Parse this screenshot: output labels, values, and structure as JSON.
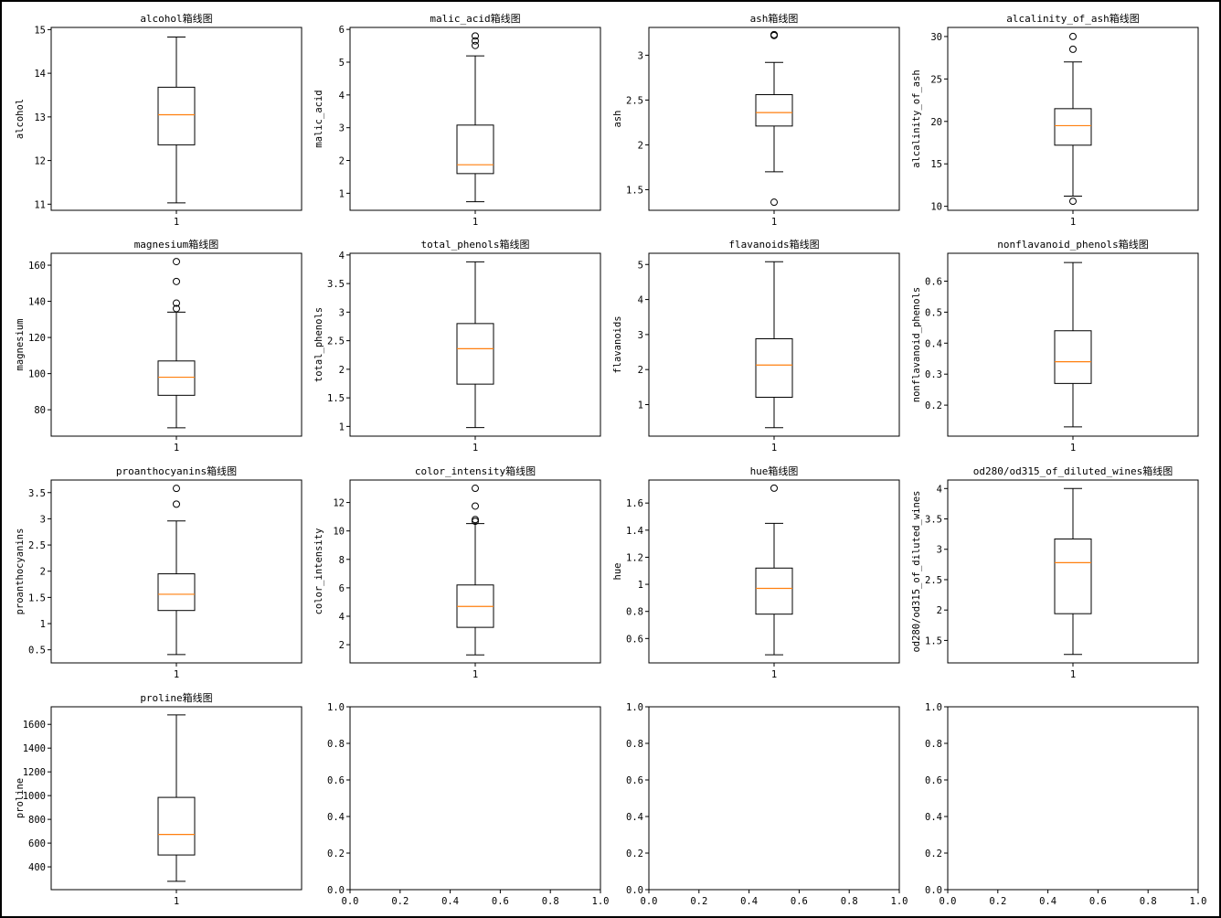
{
  "chart_data": [
    {
      "type": "box",
      "title": "alcohol箱线图",
      "ylabel": "alcohol",
      "xticks": [
        "1"
      ],
      "ylim": [
        10.86,
        15.05
      ],
      "yticks": [
        11,
        12,
        13,
        14,
        15
      ],
      "box": {
        "whisker_low": 11.03,
        "q1": 12.36,
        "median": 13.05,
        "q3": 13.68,
        "whisker_high": 14.83,
        "outliers": []
      }
    },
    {
      "type": "box",
      "title": "malic_acid箱线图",
      "ylabel": "malic_acid",
      "xticks": [
        "1"
      ],
      "ylim": [
        0.48,
        6.06
      ],
      "yticks": [
        1,
        2,
        3,
        4,
        5,
        6
      ],
      "box": {
        "whisker_low": 0.74,
        "q1": 1.6,
        "median": 1.87,
        "q3": 3.08,
        "whisker_high": 5.19,
        "outliers": [
          5.51,
          5.65,
          5.8
        ]
      }
    },
    {
      "type": "box",
      "title": "ash箱线图",
      "ylabel": "ash",
      "xticks": [
        "1"
      ],
      "ylim": [
        1.27,
        3.31
      ],
      "yticks": [
        1.5,
        2.0,
        2.5,
        3.0
      ],
      "box": {
        "whisker_low": 1.7,
        "q1": 2.21,
        "median": 2.36,
        "q3": 2.56,
        "whisker_high": 2.92,
        "outliers": [
          1.36,
          3.22,
          3.23
        ]
      }
    },
    {
      "type": "box",
      "title": "alcalinity_of_ash箱线图",
      "ylabel": "alcalinity_of_ash",
      "xticks": [
        "1"
      ],
      "ylim": [
        9.53,
        31.07
      ],
      "yticks": [
        10,
        15,
        20,
        25,
        30
      ],
      "box": {
        "whisker_low": 11.2,
        "q1": 17.2,
        "median": 19.5,
        "q3": 21.5,
        "whisker_high": 27.0,
        "outliers": [
          10.6,
          28.5,
          30.0
        ]
      }
    },
    {
      "type": "box",
      "title": "magnesium箱线图",
      "ylabel": "magnesium",
      "xticks": [
        "1"
      ],
      "ylim": [
        65.4,
        166.6
      ],
      "yticks": [
        80,
        100,
        120,
        140,
        160
      ],
      "box": {
        "whisker_low": 70,
        "q1": 88,
        "median": 98,
        "q3": 107,
        "whisker_high": 134,
        "outliers": [
          136,
          139,
          151,
          162
        ]
      }
    },
    {
      "type": "box",
      "title": "total_phenols箱线图",
      "ylabel": "total_phenols",
      "xticks": [
        "1"
      ],
      "ylim": [
        0.83,
        4.03
      ],
      "yticks": [
        1.0,
        1.5,
        2.0,
        2.5,
        3.0,
        3.5,
        4.0
      ],
      "box": {
        "whisker_low": 0.98,
        "q1": 1.74,
        "median": 2.36,
        "q3": 2.8,
        "whisker_high": 3.88,
        "outliers": []
      }
    },
    {
      "type": "box",
      "title": "flavanoids箱线图",
      "ylabel": "flavanoids",
      "xticks": [
        "1"
      ],
      "ylim": [
        0.1,
        5.32
      ],
      "yticks": [
        1,
        2,
        3,
        4,
        5
      ],
      "box": {
        "whisker_low": 0.34,
        "q1": 1.21,
        "median": 2.13,
        "q3": 2.88,
        "whisker_high": 5.08,
        "outliers": []
      }
    },
    {
      "type": "box",
      "title": "nonflavanoid_phenols箱线图",
      "ylabel": "nonflavanoid_phenols",
      "xticks": [
        "1"
      ],
      "ylim": [
        0.1,
        0.69
      ],
      "yticks": [
        0.2,
        0.3,
        0.4,
        0.5,
        0.6
      ],
      "box": {
        "whisker_low": 0.13,
        "q1": 0.27,
        "median": 0.34,
        "q3": 0.44,
        "whisker_high": 0.66,
        "outliers": []
      }
    },
    {
      "type": "box",
      "title": "proanthocyanins箱线图",
      "ylabel": "proanthocyanins",
      "xticks": [
        "1"
      ],
      "ylim": [
        0.25,
        3.74
      ],
      "yticks": [
        0.5,
        1.0,
        1.5,
        2.0,
        2.5,
        3.0,
        3.5
      ],
      "box": {
        "whisker_low": 0.41,
        "q1": 1.25,
        "median": 1.56,
        "q3": 1.95,
        "whisker_high": 2.96,
        "outliers": [
          3.28,
          3.58
        ]
      }
    },
    {
      "type": "box",
      "title": "color_intensity箱线图",
      "ylabel": "color_intensity",
      "xticks": [
        "1"
      ],
      "ylim": [
        0.72,
        13.58
      ],
      "yticks": [
        2,
        4,
        6,
        8,
        10,
        12
      ],
      "box": {
        "whisker_low": 1.28,
        "q1": 3.22,
        "median": 4.69,
        "q3": 6.2,
        "whisker_high": 10.52,
        "outliers": [
          10.68,
          10.8,
          11.75,
          13.0
        ]
      }
    },
    {
      "type": "box",
      "title": "hue箱线图",
      "ylabel": "hue",
      "xticks": [
        "1"
      ],
      "ylim": [
        0.42,
        1.77
      ],
      "yticks": [
        0.6,
        0.8,
        1.0,
        1.2,
        1.4,
        1.6
      ],
      "box": {
        "whisker_low": 0.48,
        "q1": 0.78,
        "median": 0.97,
        "q3": 1.12,
        "whisker_high": 1.45,
        "outliers": [
          1.71
        ]
      }
    },
    {
      "type": "box",
      "title": "od280/od315_of_diluted_wines箱线图",
      "ylabel": "od280/od315_of_diluted_wines",
      "xticks": [
        "1"
      ],
      "ylim": [
        1.13,
        4.14
      ],
      "yticks": [
        1.5,
        2.0,
        2.5,
        3.0,
        3.5,
        4.0
      ],
      "box": {
        "whisker_low": 1.27,
        "q1": 1.94,
        "median": 2.78,
        "q3": 3.17,
        "whisker_high": 4.0,
        "outliers": []
      }
    },
    {
      "type": "box",
      "title": "proline箱线图",
      "ylabel": "proline",
      "xticks": [
        "1"
      ],
      "ylim": [
        208,
        1748
      ],
      "yticks": [
        400,
        600,
        800,
        1000,
        1200,
        1400,
        1600
      ],
      "box": {
        "whisker_low": 278,
        "q1": 500,
        "median": 673,
        "q3": 985,
        "whisker_high": 1680,
        "outliers": []
      }
    },
    {
      "type": "empty",
      "title": "",
      "xlim": [
        0,
        1
      ],
      "ylim": [
        0,
        1
      ],
      "xticks": [
        "0.0",
        "0.2",
        "0.4",
        "0.6",
        "0.8",
        "1.0"
      ],
      "yticks": [
        "0.0",
        "0.2",
        "0.4",
        "0.6",
        "0.8",
        "1.0"
      ]
    },
    {
      "type": "empty",
      "title": "",
      "xlim": [
        0,
        1
      ],
      "ylim": [
        0,
        1
      ],
      "xticks": [
        "0.0",
        "0.2",
        "0.4",
        "0.6",
        "0.8",
        "1.0"
      ],
      "yticks": [
        "0.0",
        "0.2",
        "0.4",
        "0.6",
        "0.8",
        "1.0"
      ]
    },
    {
      "type": "empty",
      "title": "",
      "xlim": [
        0,
        1
      ],
      "ylim": [
        0,
        1
      ],
      "xticks": [
        "0.0",
        "0.2",
        "0.4",
        "0.6",
        "0.8",
        "1.0"
      ],
      "yticks": [
        "0.0",
        "0.2",
        "0.4",
        "0.6",
        "0.8",
        "1.0"
      ]
    }
  ],
  "colors": {
    "box": "#000000",
    "median": "#ff7f0e",
    "background": "#ffffff"
  }
}
